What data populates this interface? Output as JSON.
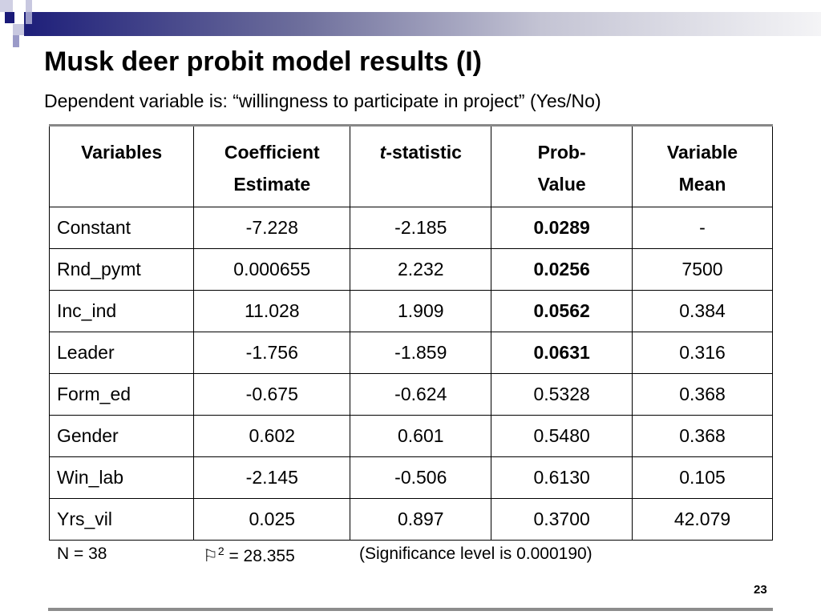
{
  "title": "Musk deer probit model results (I)",
  "subtitle": "Dependent variable is: “willingness to participate in project”  (Yes/No)",
  "table": {
    "headers": [
      [
        "Variables",
        ""
      ],
      [
        "Coefficient",
        "Estimate"
      ],
      [
        "t",
        "-statistic"
      ],
      [
        "Prob-",
        "Value"
      ],
      [
        "Variable",
        "Mean"
      ]
    ],
    "rows": [
      [
        "Constant",
        "-7.228",
        "-2.185",
        "0.0289",
        "-"
      ],
      [
        "Rnd_pymt",
        "0.000655",
        "2.232",
        "0.0256",
        "7500"
      ],
      [
        "Inc_ind",
        "11.028",
        "1.909",
        "0.0562",
        "0.384"
      ],
      [
        "Leader",
        "-1.756",
        "-1.859",
        "0.0631",
        "0.316"
      ],
      [
        "Form_ed",
        "-0.675",
        "-0.624",
        "0.5328",
        "0.368"
      ],
      [
        "Gender",
        "0.602",
        "0.601",
        "0.5480",
        "0.368"
      ],
      [
        "Win_lab",
        "-2.145",
        "-0.506",
        "0.6130",
        "0.105"
      ],
      [
        "Yrs_vil",
        "0.025",
        "0.897",
        "0.3700",
        "42.079"
      ]
    ],
    "bold_prob_rows": [
      0,
      1,
      2,
      3
    ]
  },
  "footer": {
    "n": "N  =  38",
    "chi_symbol": "⚐",
    "chi_sup": "2",
    "chi_value": " =  28.355",
    "significance": "(Significance level is 0.000190)"
  },
  "page_number": "23"
}
